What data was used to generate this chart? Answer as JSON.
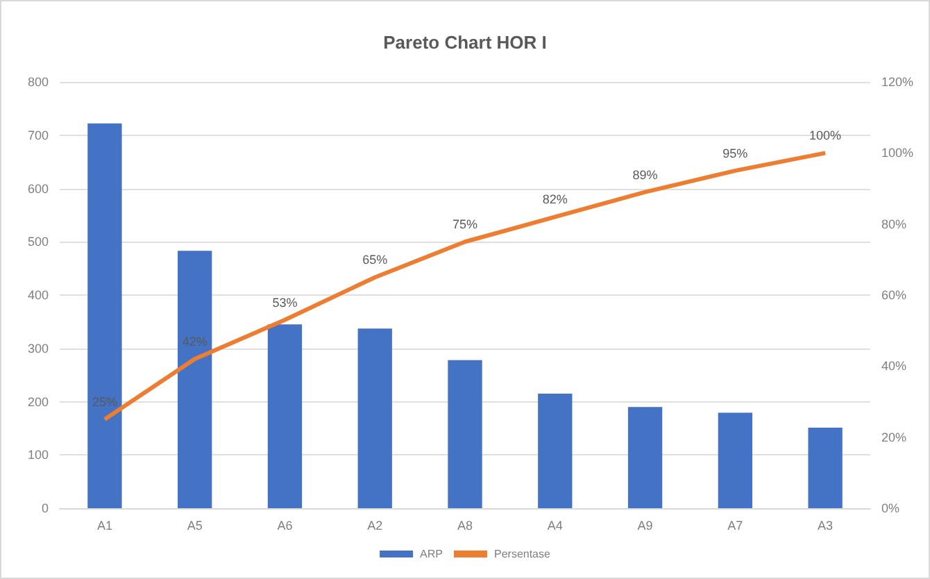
{
  "chart_data": {
    "type": "bar",
    "title": "Pareto Chart HOR I",
    "categories": [
      "A1",
      "A5",
      "A6",
      "A2",
      "A8",
      "A4",
      "A9",
      "A7",
      "A3"
    ],
    "series": [
      {
        "name": "ARP",
        "color": "#4472c4",
        "values": [
          722,
          483,
          345,
          337,
          278,
          215,
          190,
          179,
          151
        ]
      },
      {
        "name": "Persentase",
        "type": "line",
        "axis": "y2",
        "color": "#ed7d31",
        "marker": "none",
        "values": [
          25,
          42,
          53,
          65,
          75,
          82,
          89,
          95,
          100
        ],
        "value_labels": [
          "25%",
          "42%",
          "53%",
          "65%",
          "75%",
          "82%",
          "89%",
          "95%",
          "100%"
        ]
      }
    ],
    "ylim": [
      0,
      800
    ],
    "yticks": [
      0,
      100,
      200,
      300,
      400,
      500,
      600,
      700,
      800
    ],
    "y2lim": [
      0,
      120
    ],
    "y2ticks": [
      {
        "value": 0,
        "label": "0%"
      },
      {
        "value": 20,
        "label": "20%"
      },
      {
        "value": 40,
        "label": "40%"
      },
      {
        "value": 60,
        "label": "60%"
      },
      {
        "value": 80,
        "label": "80%"
      },
      {
        "value": 100,
        "label": "100%"
      },
      {
        "value": 120,
        "label": "120%"
      }
    ],
    "grid": "y",
    "legend": "bottom"
  }
}
